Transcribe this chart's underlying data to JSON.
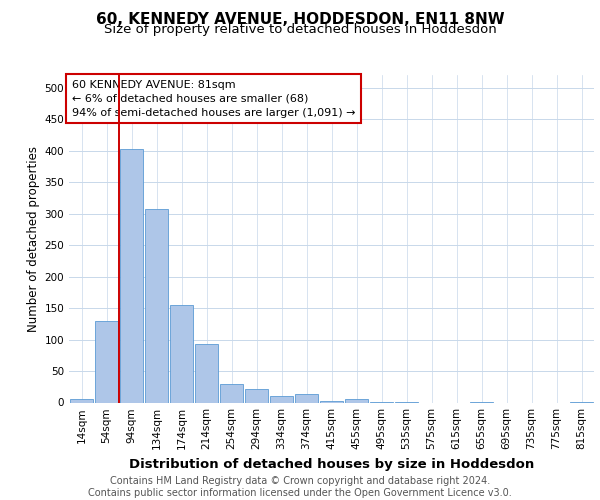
{
  "title": "60, KENNEDY AVENUE, HODDESDON, EN11 8NW",
  "subtitle": "Size of property relative to detached houses in Hoddesdon",
  "xlabel": "Distribution of detached houses by size in Hoddesdon",
  "ylabel": "Number of detached properties",
  "bar_labels": [
    "14sqm",
    "54sqm",
    "94sqm",
    "134sqm",
    "174sqm",
    "214sqm",
    "254sqm",
    "294sqm",
    "334sqm",
    "374sqm",
    "415sqm",
    "455sqm",
    "495sqm",
    "535sqm",
    "575sqm",
    "615sqm",
    "655sqm",
    "695sqm",
    "735sqm",
    "775sqm",
    "815sqm"
  ],
  "bar_values": [
    5,
    130,
    402,
    307,
    155,
    93,
    30,
    22,
    10,
    13,
    2,
    5,
    1,
    1,
    0,
    0,
    1,
    0,
    0,
    0,
    1
  ],
  "bar_color": "#aec6e8",
  "bar_edge_color": "#5b9bd5",
  "property_line_x": 1.5,
  "annotation_text": "60 KENNEDY AVENUE: 81sqm\n← 6% of detached houses are smaller (68)\n94% of semi-detached houses are larger (1,091) →",
  "annotation_box_color": "#ffffff",
  "annotation_border_color": "#cc0000",
  "vline_color": "#cc0000",
  "ylim": [
    0,
    520
  ],
  "yticks": [
    0,
    50,
    100,
    150,
    200,
    250,
    300,
    350,
    400,
    450,
    500
  ],
  "background_color": "#ffffff",
  "grid_color": "#c8d8ea",
  "footer_text": "Contains HM Land Registry data © Crown copyright and database right 2024.\nContains public sector information licensed under the Open Government Licence v3.0.",
  "title_fontsize": 11,
  "subtitle_fontsize": 9.5,
  "ylabel_fontsize": 8.5,
  "xlabel_fontsize": 9.5,
  "tick_fontsize": 7.5,
  "footer_fontsize": 7,
  "annot_fontsize": 8
}
